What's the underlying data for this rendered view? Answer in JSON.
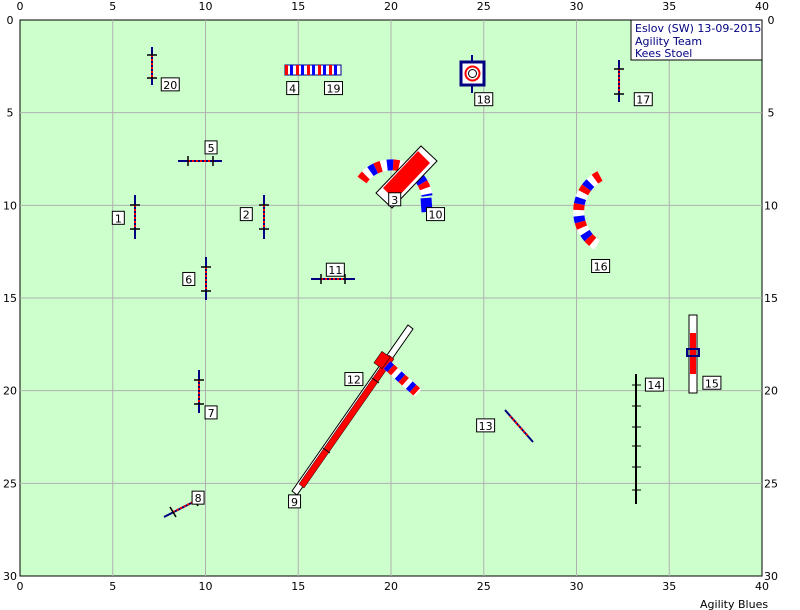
{
  "info": {
    "line1": "Eslov (SW) 13-09-2015",
    "line2": "Agility Team",
    "line3": "Kees Stoel"
  },
  "footer": "Agility Blues",
  "colors": {
    "field": "#ccffcc",
    "grid": "#b0b0b0",
    "red": "#ff0000",
    "blue": "#0000ff",
    "navy": "#000080",
    "white": "#ffffff"
  },
  "chart_data": {
    "type": "diagram",
    "x_ticks": [
      "0",
      "5",
      "10",
      "15",
      "20",
      "25",
      "30",
      "35",
      "40"
    ],
    "y_ticks": [
      "0",
      "5",
      "10",
      "15",
      "20",
      "25",
      "30"
    ],
    "xlim": [
      0,
      40
    ],
    "ylim": [
      0,
      30
    ],
    "obstacles": [
      {
        "n": "1",
        "kind": "jump",
        "x": 6.3,
        "y": 10.5,
        "angle": 90,
        "lx": 5.3,
        "ly": 10.7
      },
      {
        "n": "2",
        "kind": "jump",
        "x": 13.3,
        "y": 10.5,
        "angle": 90,
        "lx": 12.2,
        "ly": 10.5
      },
      {
        "n": "3",
        "kind": "tunnel-entry",
        "lx": 20.2,
        "ly": 9.7
      },
      {
        "n": "4",
        "kind": "weave",
        "lx": 14.7,
        "ly": 3.7
      },
      {
        "n": "5",
        "kind": "jump",
        "x": 9.7,
        "y": 7.6,
        "angle": 0,
        "lx": 10.3,
        "ly": 6.9
      },
      {
        "n": "6",
        "kind": "jump",
        "x": 10.0,
        "y": 14.0,
        "angle": 90,
        "lx": 9.1,
        "ly": 14.0
      },
      {
        "n": "7",
        "kind": "jump",
        "x": 9.7,
        "y": 20.0,
        "angle": 90,
        "lx": 10.3,
        "ly": 21.2
      },
      {
        "n": "8",
        "kind": "jump",
        "x": 8.6,
        "y": 26.3,
        "angle": -30,
        "lx": 9.6,
        "ly": 25.8
      },
      {
        "n": "9",
        "kind": "dogwalk",
        "lx": 14.8,
        "ly": 26.0
      },
      {
        "n": "10",
        "kind": "tunnel",
        "lx": 22.4,
        "ly": 10.5
      },
      {
        "n": "11",
        "kind": "jump",
        "x": 16.4,
        "y": 13.9,
        "angle": 0,
        "lx": 17.0,
        "ly": 13.5
      },
      {
        "n": "12",
        "kind": "seesaw",
        "lx": 18.0,
        "ly": 19.4
      },
      {
        "n": "13",
        "kind": "jump",
        "x": 26.5,
        "y": 21.9,
        "angle": 35,
        "lx": 25.1,
        "ly": 21.9
      },
      {
        "n": "14",
        "kind": "weave",
        "lx": 34.2,
        "ly": 19.7
      },
      {
        "n": "15",
        "kind": "tyre",
        "lx": 37.3,
        "ly": 19.6
      },
      {
        "n": "16",
        "kind": "tunnel",
        "lx": 31.3,
        "ly": 13.3
      },
      {
        "n": "17",
        "kind": "jump",
        "x": 32.7,
        "y": 3.7,
        "angle": 90,
        "lx": 33.6,
        "ly": 4.3
      },
      {
        "n": "18",
        "kind": "table",
        "x": 24.5,
        "y": 2.8,
        "lx": 25.0,
        "ly": 4.3
      },
      {
        "n": "19",
        "kind": "weave",
        "lx": 16.9,
        "ly": 3.7
      },
      {
        "n": "20",
        "kind": "jump",
        "x": 7.3,
        "y": 2.5,
        "angle": 90,
        "lx": 8.1,
        "ly": 3.5
      }
    ]
  }
}
